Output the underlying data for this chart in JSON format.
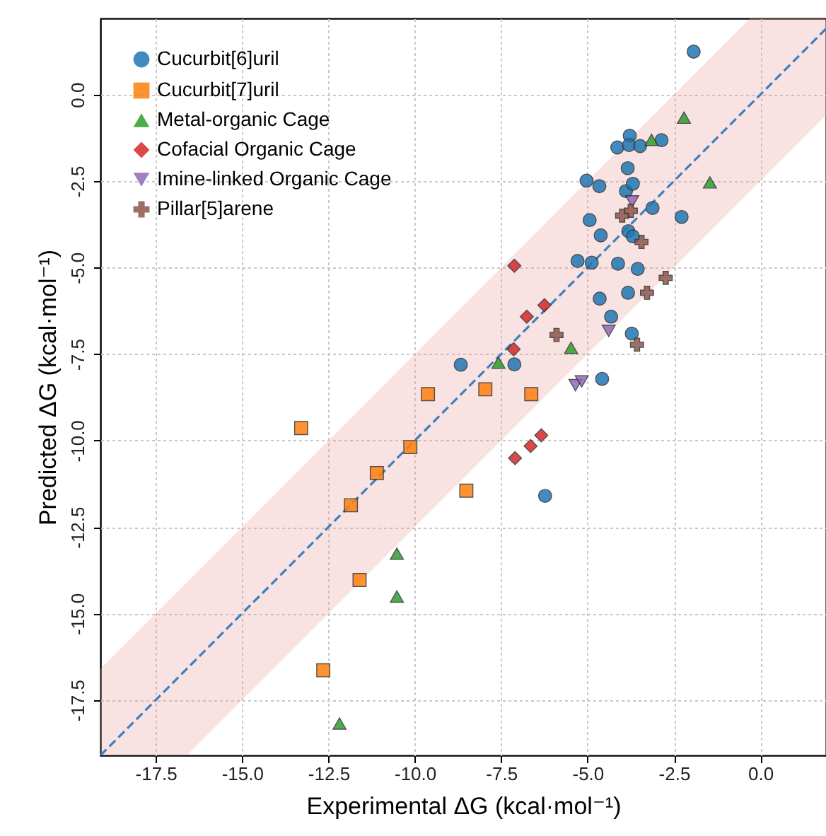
{
  "chart_data": {
    "type": "scatter",
    "xlabel": "Experimental ΔG (kcal·mol⁻¹)",
    "ylabel": "Predicted ΔG (kcal·mol⁻¹)",
    "xlim": [
      -19.1,
      1.9
    ],
    "ylim": [
      -19.1,
      2.2
    ],
    "xticks": [
      {
        "value": -17.5,
        "label": "-17.5"
      },
      {
        "value": -15,
        "label": "-15.0"
      },
      {
        "value": -12.5,
        "label": "-12.5"
      },
      {
        "value": -10,
        "label": "-10.0"
      },
      {
        "value": -7.5,
        "label": "-7.5"
      },
      {
        "value": -5,
        "label": "-5.0"
      },
      {
        "value": -2.5,
        "label": "-2.5"
      },
      {
        "value": 0,
        "label": "0.0"
      }
    ],
    "yticks": [
      {
        "value": -17.5,
        "label": "-17.5"
      },
      {
        "value": -15,
        "label": "-15.0"
      },
      {
        "value": -12.5,
        "label": "-12.5"
      },
      {
        "value": -10,
        "label": "-10.0"
      },
      {
        "value": -7.5,
        "label": "-7.5"
      },
      {
        "value": -5,
        "label": "-5.0"
      },
      {
        "value": -2.5,
        "label": "-2.5"
      },
      {
        "value": 0,
        "label": "0.0"
      }
    ],
    "grid": true,
    "legend": "top left",
    "series": [
      {
        "type": "line",
        "color": "#3a7fc0",
        "line_style": "dashed",
        "x": [
          -19.1,
          -16.6,
          -0.3,
          1.9
        ],
        "values": [
          -19.1,
          -16.6,
          -0.3,
          1.9
        ],
        "lower": [
          -19.1,
          -19.1,
          -2.8,
          -0.6
        ],
        "upper": [
          -16.6,
          -14.1,
          2.2,
          2.2
        ]
      },
      {
        "name": "Cucurbit[6]uril",
        "color": "#1f77b4",
        "marker": "circle",
        "x": [
          -1.93,
          -3.78,
          -4.14,
          -3.8,
          -3.48,
          -2.86,
          -3.84,
          -5.03,
          -4.66,
          -3.89,
          -3.69,
          -3.12,
          -2.28,
          -4.94,
          -4.62,
          -3.82,
          -3.69,
          -5.29,
          -4.88,
          -4.12,
          -3.55,
          -4.65,
          -3.83,
          -4.32,
          -3.72,
          -4.58,
          -8.67,
          -7.12,
          -6.23
        ],
        "values": [
          1.24,
          -1.19,
          -1.53,
          -1.46,
          -1.49,
          -1.32,
          -2.13,
          -2.49,
          -2.65,
          -2.79,
          -2.58,
          -3.28,
          -3.54,
          -3.63,
          -4.07,
          -3.95,
          -4.1,
          -4.81,
          -4.86,
          -4.89,
          -5.04,
          -5.9,
          -5.73,
          -6.42,
          -6.91,
          -8.22,
          -7.81,
          -7.8,
          -11.6
        ]
      },
      {
        "name": "Cucurbit[7]uril",
        "color": "#ff7f0e",
        "marker": "square",
        "x": [
          -7.96,
          -6.63,
          -8.51,
          -9.62,
          -13.29,
          -10.13,
          -11.1,
          -11.85,
          -11.6,
          -12.65
        ],
        "values": [
          -8.52,
          -8.66,
          -11.45,
          -8.66,
          -9.64,
          -10.19,
          -10.94,
          -11.87,
          -14.03,
          -16.64
        ]
      },
      {
        "name": "Metal-organic Cage",
        "color": "#2ca02c",
        "marker": "triangle",
        "x": [
          -2.21,
          -3.15,
          -1.46,
          -5.48,
          -7.58,
          -10.52,
          -10.52,
          -12.18
        ],
        "values": [
          -0.67,
          -1.31,
          -2.54,
          -7.32,
          -7.75,
          -13.27,
          -14.51,
          -18.18
        ]
      },
      {
        "name": "Cofacial Organic Cage",
        "color": "#d62728",
        "marker": "diamond",
        "x": [
          -7.12,
          -6.25,
          -6.76,
          -7.14,
          -6.34,
          -6.65,
          -7.1
        ],
        "values": [
          -4.95,
          -6.09,
          -6.42,
          -7.36,
          -9.85,
          -10.16,
          -10.51
        ]
      },
      {
        "name": "Imine-linked Organic Cage",
        "color": "#9467bd",
        "marker": "triangle-down",
        "x": [
          -3.71,
          -4.39,
          -5.35,
          -5.17
        ],
        "values": [
          -3.09,
          -6.83,
          -8.4,
          -8.29
        ]
      },
      {
        "name": "Pillar[5]arene",
        "color": "#8c564b",
        "marker": "cross",
        "x": [
          -4.0,
          -3.75,
          -3.44,
          -2.74,
          -3.28,
          -5.9,
          -3.57
        ],
        "values": [
          -3.5,
          -3.36,
          -4.26,
          -5.3,
          -5.73,
          -6.95,
          -7.23
        ]
      }
    ]
  }
}
